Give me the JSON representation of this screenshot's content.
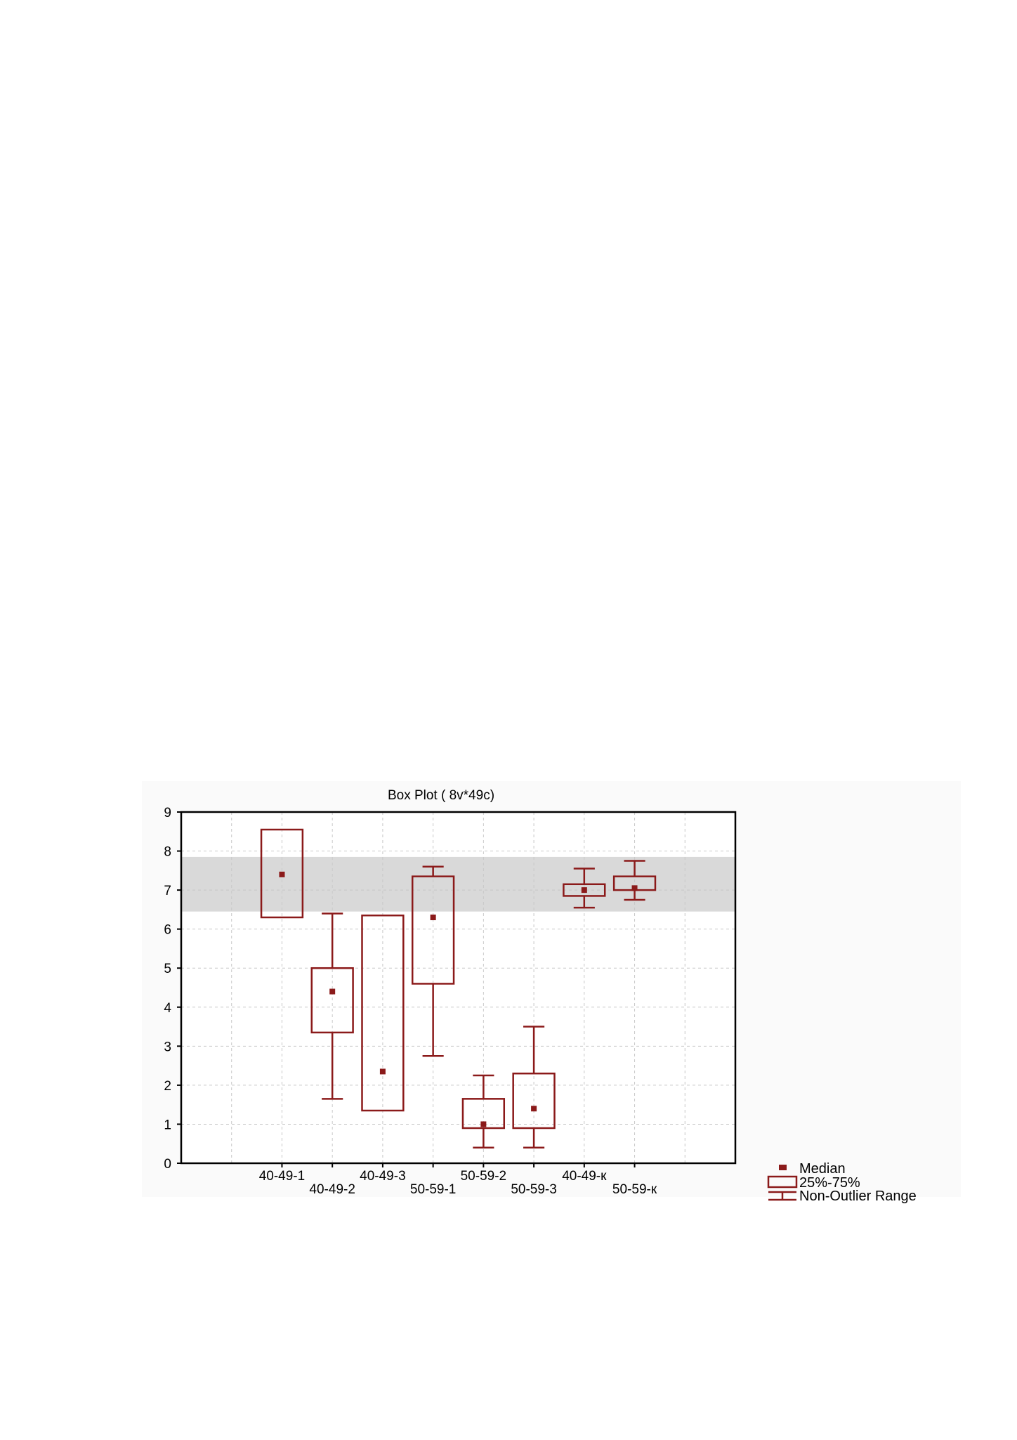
{
  "chart_data": {
    "type": "box",
    "title": "Box Plot ( 8v*49c)",
    "ylim": [
      0,
      9
    ],
    "yticks": [
      0,
      1,
      2,
      3,
      4,
      5,
      6,
      7,
      8,
      9
    ],
    "grid": true,
    "reference_band": [
      6.45,
      7.85
    ],
    "categories": [
      "40-49-1",
      "40-49-2",
      "40-49-3",
      "50-59-1",
      "50-59-2",
      "50-59-3",
      "40-49-к",
      "50-59-к"
    ],
    "boxes": [
      {
        "median": 7.4,
        "q1": 6.3,
        "q3": 8.55,
        "min": null,
        "max": null
      },
      {
        "median": 4.4,
        "q1": 3.35,
        "q3": 5.0,
        "min": 1.65,
        "max": 6.4
      },
      {
        "median": 2.35,
        "q1": 1.35,
        "q3": 6.35,
        "min": null,
        "max": null
      },
      {
        "median": 6.3,
        "q1": 4.6,
        "q3": 7.35,
        "min": 2.75,
        "max": 7.6
      },
      {
        "median": 1.0,
        "q1": 0.9,
        "q3": 1.65,
        "min": 0.4,
        "max": 2.25
      },
      {
        "median": 1.4,
        "q1": 0.9,
        "q3": 2.3,
        "min": 0.4,
        "max": 3.5
      },
      {
        "median": 7.0,
        "q1": 6.85,
        "q3": 7.15,
        "min": 6.55,
        "max": 7.55
      },
      {
        "median": 7.05,
        "q1": 7.0,
        "q3": 7.35,
        "min": 6.75,
        "max": 7.75
      }
    ],
    "legend": {
      "position": "bottom-right",
      "items": [
        "Median",
        "25%-75%",
        "Non-Outlier Range"
      ]
    },
    "colors": {
      "box": "#8b1a1a",
      "band": "#d9d9d9",
      "grid": "#c8c8c8",
      "frame_bg": "#fafafa"
    }
  }
}
